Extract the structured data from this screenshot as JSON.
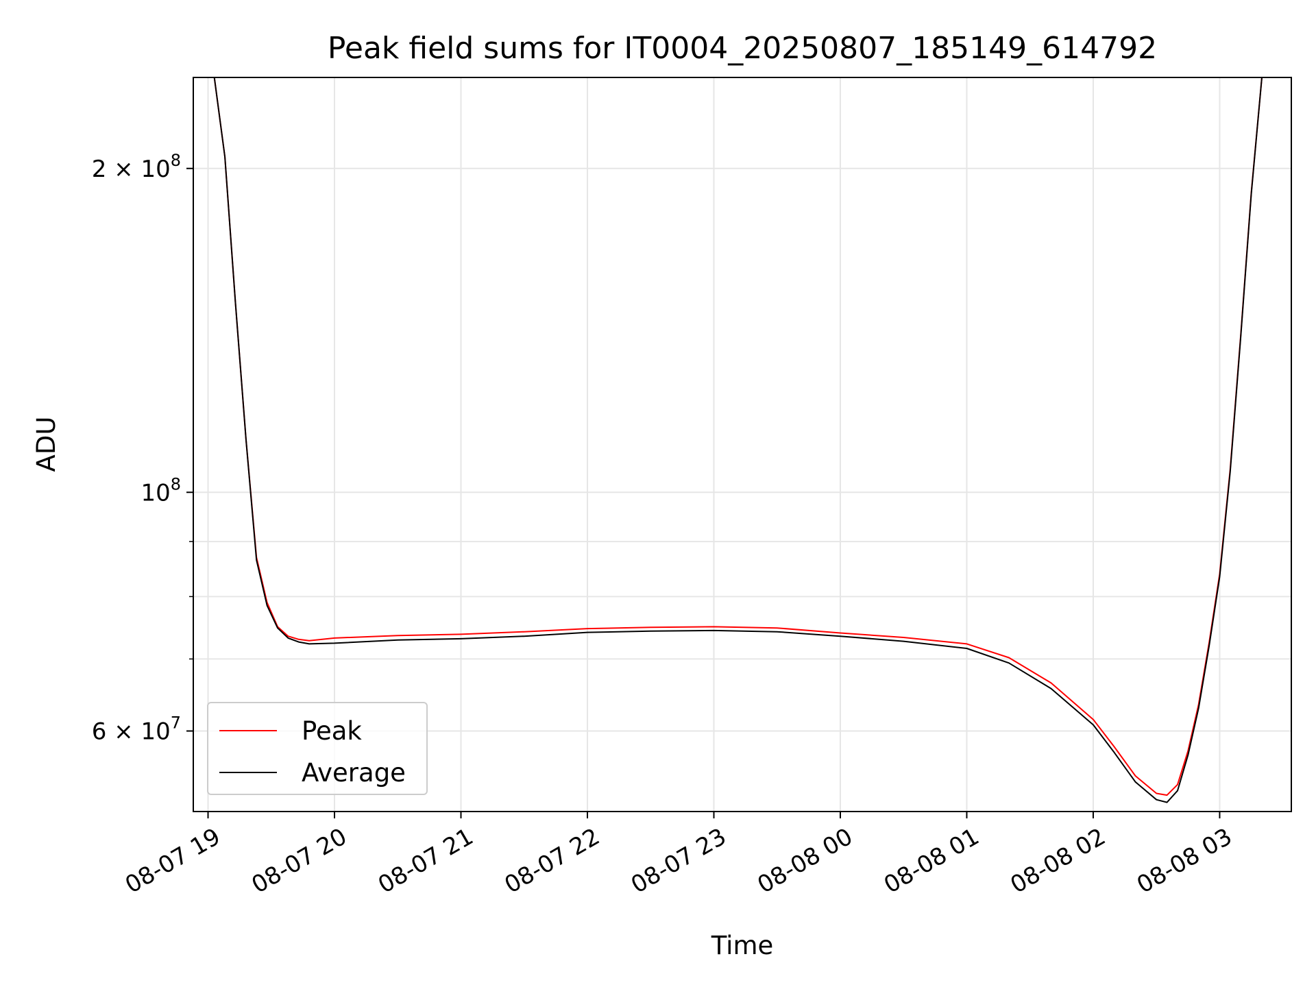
{
  "chart_data": {
    "type": "line",
    "title": "Peak field sums for IT0004_20250807_185149_614792",
    "xlabel": "Time",
    "ylabel": "ADU",
    "y_scale": "log",
    "ylim": [
      50500000,
      243000000
    ],
    "xlim": [
      "2025-08-07 18:53",
      "2025-08-08 03:34"
    ],
    "grid": true,
    "legend_position": "lower-left",
    "x_ticks": [
      "08-07 19",
      "08-07 20",
      "08-07 21",
      "08-07 22",
      "08-07 23",
      "08-08 00",
      "08-08 01",
      "08-08 02",
      "08-08 03"
    ],
    "x_tick_times": [
      "2025-08-07 19:00",
      "2025-08-07 20:00",
      "2025-08-07 21:00",
      "2025-08-07 22:00",
      "2025-08-07 23:00",
      "2025-08-08 00:00",
      "2025-08-08 01:00",
      "2025-08-08 02:00",
      "2025-08-08 03:00"
    ],
    "y_ticks": [
      {
        "value": 200000000,
        "base": "2 × 10",
        "exp": "8"
      },
      {
        "value": 100000000,
        "base": "10",
        "exp": "8"
      },
      {
        "value": 60000000,
        "base": "6 × 10",
        "exp": "7"
      }
    ],
    "y_minor_ticks": [
      50000000,
      70000000,
      80000000,
      90000000,
      300000000
    ],
    "series": [
      {
        "name": "Peak",
        "color": "#ff0000",
        "x": [
          "2025-08-07 18:53",
          "2025-08-07 19:03",
          "2025-08-07 19:08",
          "2025-08-07 19:13",
          "2025-08-07 19:18",
          "2025-08-07 19:23",
          "2025-08-07 19:28",
          "2025-08-07 19:33",
          "2025-08-07 19:38",
          "2025-08-07 19:43",
          "2025-08-07 19:48",
          "2025-08-07 20:00",
          "2025-08-07 20:30",
          "2025-08-07 21:00",
          "2025-08-07 21:30",
          "2025-08-07 22:00",
          "2025-08-07 22:30",
          "2025-08-07 23:00",
          "2025-08-07 23:30",
          "2025-08-08 00:00",
          "2025-08-08 00:30",
          "2025-08-08 01:00",
          "2025-08-08 01:20",
          "2025-08-08 01:40",
          "2025-08-08 02:00",
          "2025-08-08 02:10",
          "2025-08-08 02:20",
          "2025-08-08 02:30",
          "2025-08-08 02:35",
          "2025-08-08 02:40",
          "2025-08-08 02:45",
          "2025-08-08 02:50",
          "2025-08-08 02:55",
          "2025-08-08 03:00",
          "2025-08-08 03:05",
          "2025-08-08 03:10",
          "2025-08-08 03:15",
          "2025-08-08 03:20",
          "2025-08-08 03:34"
        ],
        "y": [
          243000000,
          243000000,
          205000000,
          150000000,
          112000000,
          87000000,
          79000000,
          75000000,
          73500000,
          73000000,
          72800000,
          73200000,
          73600000,
          73800000,
          74200000,
          74700000,
          74900000,
          75000000,
          74800000,
          74000000,
          73300000,
          72300000,
          70200000,
          66500000,
          61500000,
          58000000,
          54500000,
          52500000,
          52300000,
          53500000,
          57500000,
          63500000,
          72500000,
          84000000,
          105000000,
          140000000,
          190000000,
          243000000,
          243000000
        ]
      },
      {
        "name": "Average",
        "color": "#000000",
        "x": [
          "2025-08-07 18:53",
          "2025-08-07 19:03",
          "2025-08-07 19:08",
          "2025-08-07 19:13",
          "2025-08-07 19:18",
          "2025-08-07 19:23",
          "2025-08-07 19:28",
          "2025-08-07 19:33",
          "2025-08-07 19:38",
          "2025-08-07 19:43",
          "2025-08-07 19:48",
          "2025-08-07 20:00",
          "2025-08-07 20:30",
          "2025-08-07 21:00",
          "2025-08-07 21:30",
          "2025-08-07 22:00",
          "2025-08-07 22:30",
          "2025-08-07 23:00",
          "2025-08-07 23:30",
          "2025-08-08 00:00",
          "2025-08-08 00:30",
          "2025-08-08 01:00",
          "2025-08-08 01:20",
          "2025-08-08 01:40",
          "2025-08-08 02:00",
          "2025-08-08 02:10",
          "2025-08-08 02:20",
          "2025-08-08 02:30",
          "2025-08-08 02:35",
          "2025-08-08 02:40",
          "2025-08-08 02:45",
          "2025-08-08 02:50",
          "2025-08-08 02:55",
          "2025-08-08 03:00",
          "2025-08-08 03:05",
          "2025-08-08 03:10",
          "2025-08-08 03:15",
          "2025-08-08 03:20",
          "2025-08-08 03:34"
        ],
        "y": [
          243000000,
          243000000,
          205000000,
          150000000,
          112000000,
          86500000,
          78500000,
          74800000,
          73200000,
          72600000,
          72300000,
          72400000,
          72900000,
          73100000,
          73500000,
          74100000,
          74300000,
          74400000,
          74200000,
          73500000,
          72700000,
          71600000,
          69400000,
          65700000,
          60800000,
          57300000,
          53800000,
          51800000,
          51500000,
          52800000,
          57000000,
          63000000,
          72000000,
          83500000,
          104500000,
          139500000,
          189500000,
          243000000,
          243000000
        ]
      }
    ]
  }
}
